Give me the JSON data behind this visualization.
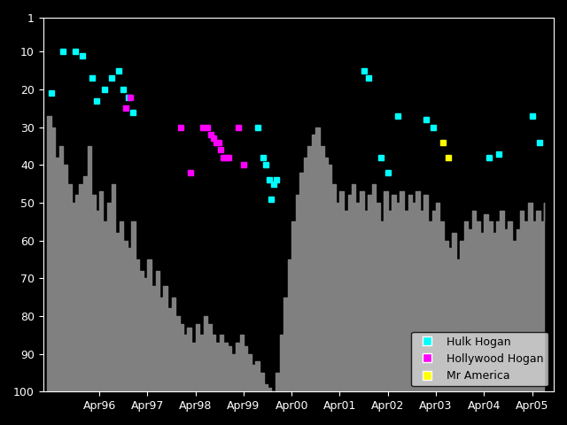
{
  "fig_bg_color": "#000000",
  "plot_bg_color": "#000000",
  "gray_color": "#808080",
  "ylim": [
    100,
    1
  ],
  "ylabel_ticks": [
    1,
    10,
    20,
    30,
    40,
    50,
    60,
    70,
    80,
    90,
    100
  ],
  "xtick_labels": [
    "Apr96",
    "Apr97",
    "Apr98",
    "Apr99",
    "Apr00",
    "Apr01",
    "Apr02",
    "Apr03",
    "Apr04",
    "Apr05"
  ],
  "xtick_positions": [
    1996.25,
    1997.25,
    1998.25,
    1999.25,
    2000.25,
    2001.25,
    2002.25,
    2003.25,
    2004.25,
    2005.25
  ],
  "hulk_hogan": {
    "color": "#00ffff",
    "marker": "s",
    "markersize": 5,
    "label": "Hulk Hogan",
    "data": [
      [
        1995.25,
        21
      ],
      [
        1995.5,
        10
      ],
      [
        1995.75,
        10
      ],
      [
        1995.9,
        11
      ],
      [
        1996.1,
        17
      ],
      [
        1996.2,
        23
      ],
      [
        1996.35,
        20
      ],
      [
        1996.5,
        17
      ],
      [
        1996.65,
        15
      ],
      [
        1996.75,
        20
      ],
      [
        1996.85,
        22
      ],
      [
        1996.95,
        26
      ],
      [
        1999.55,
        30
      ],
      [
        1999.65,
        38
      ],
      [
        1999.72,
        40
      ],
      [
        1999.78,
        44
      ],
      [
        1999.83,
        49
      ],
      [
        1999.88,
        45
      ],
      [
        1999.93,
        44
      ],
      [
        2001.75,
        15
      ],
      [
        2001.85,
        17
      ],
      [
        2002.1,
        38
      ],
      [
        2002.25,
        42
      ],
      [
        2002.45,
        27
      ],
      [
        2003.05,
        28
      ],
      [
        2003.2,
        30
      ],
      [
        2004.35,
        38
      ],
      [
        2004.55,
        37
      ],
      [
        2005.25,
        27
      ],
      [
        2005.4,
        34
      ]
    ]
  },
  "hollywood_hogan": {
    "color": "#ff00ff",
    "marker": "s",
    "markersize": 5,
    "label": "Hollywood Hogan",
    "data": [
      [
        1996.8,
        25
      ],
      [
        1996.9,
        22
      ],
      [
        1997.95,
        30
      ],
      [
        1998.15,
        42
      ],
      [
        1998.4,
        30
      ],
      [
        1998.5,
        30
      ],
      [
        1998.57,
        32
      ],
      [
        1998.63,
        33
      ],
      [
        1998.68,
        34
      ],
      [
        1998.73,
        34
      ],
      [
        1998.78,
        36
      ],
      [
        1998.83,
        38
      ],
      [
        1998.88,
        38
      ],
      [
        1998.93,
        38
      ],
      [
        1999.15,
        30
      ],
      [
        1999.25,
        40
      ]
    ]
  },
  "mr_america": {
    "color": "#ffff00",
    "marker": "s",
    "markersize": 5,
    "label": "Mr America",
    "data": [
      [
        2003.4,
        34
      ],
      [
        2003.5,
        38
      ]
    ]
  },
  "gray_step_data": [
    [
      1995.17,
      27
    ],
    [
      1995.25,
      30
    ],
    [
      1995.33,
      38
    ],
    [
      1995.42,
      35
    ],
    [
      1995.5,
      40
    ],
    [
      1995.58,
      45
    ],
    [
      1995.67,
      50
    ],
    [
      1995.75,
      48
    ],
    [
      1995.83,
      45
    ],
    [
      1995.92,
      43
    ],
    [
      1996.0,
      35
    ],
    [
      1996.08,
      48
    ],
    [
      1996.17,
      52
    ],
    [
      1996.25,
      47
    ],
    [
      1996.33,
      55
    ],
    [
      1996.42,
      50
    ],
    [
      1996.5,
      45
    ],
    [
      1996.58,
      58
    ],
    [
      1996.67,
      55
    ],
    [
      1996.75,
      60
    ],
    [
      1996.83,
      62
    ],
    [
      1996.92,
      55
    ],
    [
      1997.0,
      65
    ],
    [
      1997.08,
      68
    ],
    [
      1997.17,
      70
    ],
    [
      1997.25,
      65
    ],
    [
      1997.33,
      72
    ],
    [
      1997.42,
      68
    ],
    [
      1997.5,
      75
    ],
    [
      1997.58,
      72
    ],
    [
      1997.67,
      78
    ],
    [
      1997.75,
      75
    ],
    [
      1997.83,
      80
    ],
    [
      1997.92,
      82
    ],
    [
      1998.0,
      85
    ],
    [
      1998.08,
      83
    ],
    [
      1998.17,
      87
    ],
    [
      1998.25,
      82
    ],
    [
      1998.33,
      85
    ],
    [
      1998.42,
      80
    ],
    [
      1998.5,
      82
    ],
    [
      1998.58,
      85
    ],
    [
      1998.67,
      87
    ],
    [
      1998.75,
      85
    ],
    [
      1998.83,
      87
    ],
    [
      1998.92,
      88
    ],
    [
      1999.0,
      90
    ],
    [
      1999.08,
      87
    ],
    [
      1999.17,
      85
    ],
    [
      1999.25,
      88
    ],
    [
      1999.33,
      90
    ],
    [
      1999.42,
      93
    ],
    [
      1999.5,
      92
    ],
    [
      1999.58,
      95
    ],
    [
      1999.67,
      98
    ],
    [
      1999.75,
      99
    ],
    [
      1999.83,
      100
    ],
    [
      1999.92,
      95
    ],
    [
      2000.0,
      85
    ],
    [
      2000.08,
      75
    ],
    [
      2000.17,
      65
    ],
    [
      2000.25,
      55
    ],
    [
      2000.33,
      48
    ],
    [
      2000.42,
      42
    ],
    [
      2000.5,
      38
    ],
    [
      2000.58,
      35
    ],
    [
      2000.67,
      32
    ],
    [
      2000.75,
      30
    ],
    [
      2000.83,
      35
    ],
    [
      2000.92,
      38
    ],
    [
      2001.0,
      40
    ],
    [
      2001.08,
      45
    ],
    [
      2001.17,
      50
    ],
    [
      2001.25,
      47
    ],
    [
      2001.33,
      52
    ],
    [
      2001.42,
      48
    ],
    [
      2001.5,
      45
    ],
    [
      2001.58,
      50
    ],
    [
      2001.67,
      47
    ],
    [
      2001.75,
      52
    ],
    [
      2001.83,
      48
    ],
    [
      2001.92,
      45
    ],
    [
      2002.0,
      50
    ],
    [
      2002.08,
      55
    ],
    [
      2002.17,
      47
    ],
    [
      2002.25,
      52
    ],
    [
      2002.33,
      48
    ],
    [
      2002.42,
      50
    ],
    [
      2002.5,
      47
    ],
    [
      2002.58,
      52
    ],
    [
      2002.67,
      48
    ],
    [
      2002.75,
      50
    ],
    [
      2002.83,
      47
    ],
    [
      2002.92,
      52
    ],
    [
      2003.0,
      48
    ],
    [
      2003.08,
      55
    ],
    [
      2003.17,
      52
    ],
    [
      2003.25,
      50
    ],
    [
      2003.33,
      55
    ],
    [
      2003.42,
      60
    ],
    [
      2003.5,
      62
    ],
    [
      2003.58,
      58
    ],
    [
      2003.67,
      65
    ],
    [
      2003.75,
      60
    ],
    [
      2003.83,
      55
    ],
    [
      2003.92,
      57
    ],
    [
      2004.0,
      52
    ],
    [
      2004.08,
      55
    ],
    [
      2004.17,
      58
    ],
    [
      2004.25,
      53
    ],
    [
      2004.33,
      55
    ],
    [
      2004.42,
      58
    ],
    [
      2004.5,
      55
    ],
    [
      2004.58,
      52
    ],
    [
      2004.67,
      57
    ],
    [
      2004.75,
      55
    ],
    [
      2004.83,
      60
    ],
    [
      2004.92,
      57
    ],
    [
      2005.0,
      52
    ],
    [
      2005.08,
      55
    ],
    [
      2005.17,
      50
    ],
    [
      2005.25,
      55
    ],
    [
      2005.33,
      52
    ],
    [
      2005.42,
      55
    ],
    [
      2005.5,
      50
    ]
  ],
  "xlim": [
    1995.08,
    2005.7
  ],
  "legend_loc": "lower right"
}
